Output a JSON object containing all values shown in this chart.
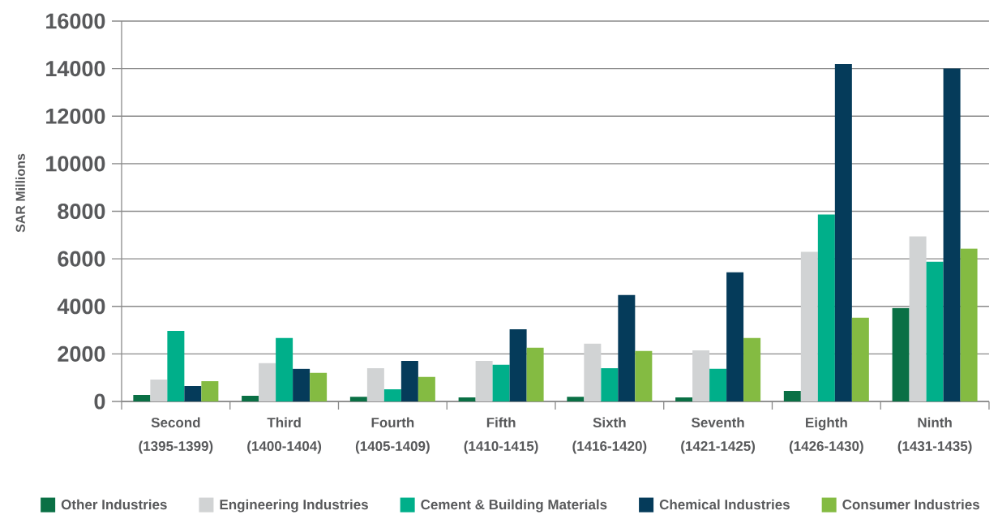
{
  "chart_data": {
    "type": "bar",
    "ylabel": "SAR Millions",
    "categories": [
      "Second (1395-1399)",
      "Third (1400-1404)",
      "Fourth (1405-1409)",
      "Fifth (1410-1415)",
      "Sixth (1416-1420)",
      "Seventh (1421-1425)",
      "Eighth (1426-1430)",
      "Ninth (1431-1435)"
    ],
    "series": [
      {
        "name": "Other Industries",
        "color": "#0a7045",
        "values": [
          270,
          240,
          200,
          170,
          200,
          170,
          440,
          3930
        ]
      },
      {
        "name": "Engineering Industries",
        "color": "#d1d3d4",
        "values": [
          920,
          1610,
          1400,
          1710,
          2430,
          2150,
          6290,
          6940
        ]
      },
      {
        "name": "Cement & Building Materials",
        "color": "#00af8a",
        "values": [
          2970,
          2670,
          510,
          1540,
          1400,
          1370,
          7860,
          5880
        ]
      },
      {
        "name": "Chemical Industries",
        "color": "#053b5a",
        "values": [
          650,
          1370,
          1710,
          3040,
          4480,
          5430,
          14190,
          14000
        ]
      },
      {
        "name": "Consumer Industries",
        "color": "#84bb42",
        "values": [
          850,
          1200,
          1030,
          2260,
          2120,
          2670,
          3520,
          6430
        ]
      }
    ],
    "ylim": [
      0,
      16000
    ],
    "yticks": [
      0,
      2000,
      4000,
      6000,
      8000,
      10000,
      12000,
      14000,
      16000
    ],
    "grid": "y",
    "legend": "bottom"
  }
}
